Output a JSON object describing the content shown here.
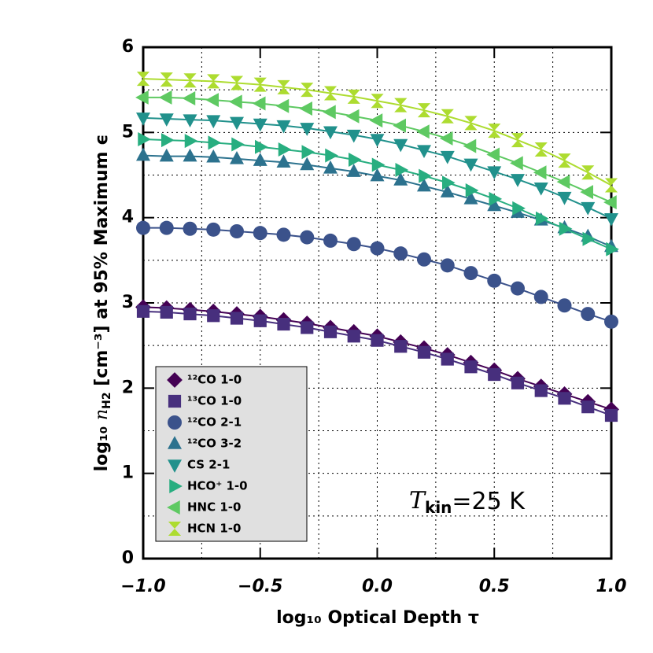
{
  "chart_data": {
    "type": "line",
    "xlabel": "log₁₀ Optical Depth τ",
    "ylabel": [
      "log₁₀ ",
      "n",
      "H2",
      " [cm⁻³] at 95% Maximum ϵ"
    ],
    "annotation": {
      "symbol": "T",
      "subscript": "kin",
      "text": "=25 K"
    },
    "x": [
      -1.0,
      -0.9,
      -0.8,
      -0.7,
      -0.6,
      -0.5,
      -0.4,
      -0.3,
      -0.2,
      -0.1,
      0.0,
      0.1,
      0.2,
      0.3,
      0.4,
      0.5,
      0.6,
      0.7,
      0.8,
      0.9,
      1.0
    ],
    "xlim": [
      -1.0,
      1.0
    ],
    "xticks": [
      {
        "value": -1.0,
        "label": "−1.0"
      },
      {
        "value": -0.5,
        "label": "−0.5"
      },
      {
        "value": 0.0,
        "label": "0.0"
      },
      {
        "value": 0.5,
        "label": "0.5"
      },
      {
        "value": 1.0,
        "label": "1.0"
      }
    ],
    "xminor": [
      -0.75,
      -0.5,
      -0.25,
      0.0,
      0.25,
      0.5,
      0.75
    ],
    "ylim": [
      0,
      6
    ],
    "yticks": [
      0,
      1,
      2,
      3,
      4,
      5,
      6
    ],
    "yminor": [
      0.5,
      1,
      1.5,
      2,
      2.5,
      3,
      3.5,
      4,
      4.5,
      5,
      5.5
    ],
    "grid": true,
    "legend": "lower left",
    "series": [
      {
        "name": "¹²CO 1-0",
        "color": "#440154",
        "marker": "diamond",
        "values": [
          2.95,
          2.94,
          2.92,
          2.9,
          2.87,
          2.84,
          2.8,
          2.76,
          2.71,
          2.66,
          2.61,
          2.54,
          2.47,
          2.39,
          2.3,
          2.21,
          2.11,
          2.02,
          1.93,
          1.84,
          1.75
        ]
      },
      {
        "name": "¹³CO 1-0",
        "color": "#472f7d",
        "marker": "square",
        "values": [
          2.9,
          2.89,
          2.87,
          2.85,
          2.82,
          2.79,
          2.75,
          2.71,
          2.66,
          2.61,
          2.56,
          2.49,
          2.42,
          2.34,
          2.25,
          2.16,
          2.06,
          1.97,
          1.88,
          1.78,
          1.68
        ]
      },
      {
        "name": "¹²CO 2-1",
        "color": "#3b528b",
        "marker": "circle",
        "values": [
          3.88,
          3.88,
          3.87,
          3.86,
          3.84,
          3.82,
          3.8,
          3.77,
          3.73,
          3.69,
          3.64,
          3.58,
          3.51,
          3.44,
          3.35,
          3.26,
          3.17,
          3.07,
          2.97,
          2.87,
          2.78
        ]
      },
      {
        "name": "¹²CO 3-2",
        "color": "#2c728e",
        "marker": "triangle-up",
        "values": [
          4.73,
          4.72,
          4.72,
          4.71,
          4.69,
          4.67,
          4.65,
          4.62,
          4.58,
          4.54,
          4.49,
          4.44,
          4.37,
          4.3,
          4.22,
          4.14,
          4.06,
          3.97,
          3.88,
          3.78,
          3.66
        ]
      },
      {
        "name": "CS 2-1",
        "color": "#21918c",
        "marker": "triangle-down",
        "values": [
          5.17,
          5.16,
          5.15,
          5.14,
          5.12,
          5.1,
          5.08,
          5.05,
          5.01,
          4.97,
          4.92,
          4.86,
          4.79,
          4.72,
          4.63,
          4.54,
          4.45,
          4.35,
          4.24,
          4.12,
          3.99
        ]
      },
      {
        "name": "HCO⁺ 1-0",
        "color": "#28ae80",
        "marker": "triangle-right",
        "values": [
          4.92,
          4.91,
          4.9,
          4.88,
          4.86,
          4.83,
          4.8,
          4.77,
          4.73,
          4.68,
          4.62,
          4.56,
          4.49,
          4.41,
          4.32,
          4.22,
          4.11,
          3.99,
          3.87,
          3.75,
          3.63
        ]
      },
      {
        "name": "HNC 1-0",
        "color": "#5ec962",
        "marker": "triangle-left",
        "values": [
          5.41,
          5.41,
          5.4,
          5.38,
          5.36,
          5.34,
          5.31,
          5.28,
          5.24,
          5.19,
          5.14,
          5.08,
          5.01,
          4.93,
          4.84,
          4.74,
          4.64,
          4.53,
          4.42,
          4.3,
          4.18
        ]
      },
      {
        "name": "HCN 1-0",
        "color": "#addc30",
        "marker": "hourglass",
        "values": [
          5.63,
          5.62,
          5.61,
          5.6,
          5.58,
          5.56,
          5.53,
          5.5,
          5.46,
          5.42,
          5.37,
          5.32,
          5.26,
          5.19,
          5.11,
          5.02,
          4.91,
          4.8,
          4.67,
          4.53,
          4.38
        ]
      }
    ]
  }
}
